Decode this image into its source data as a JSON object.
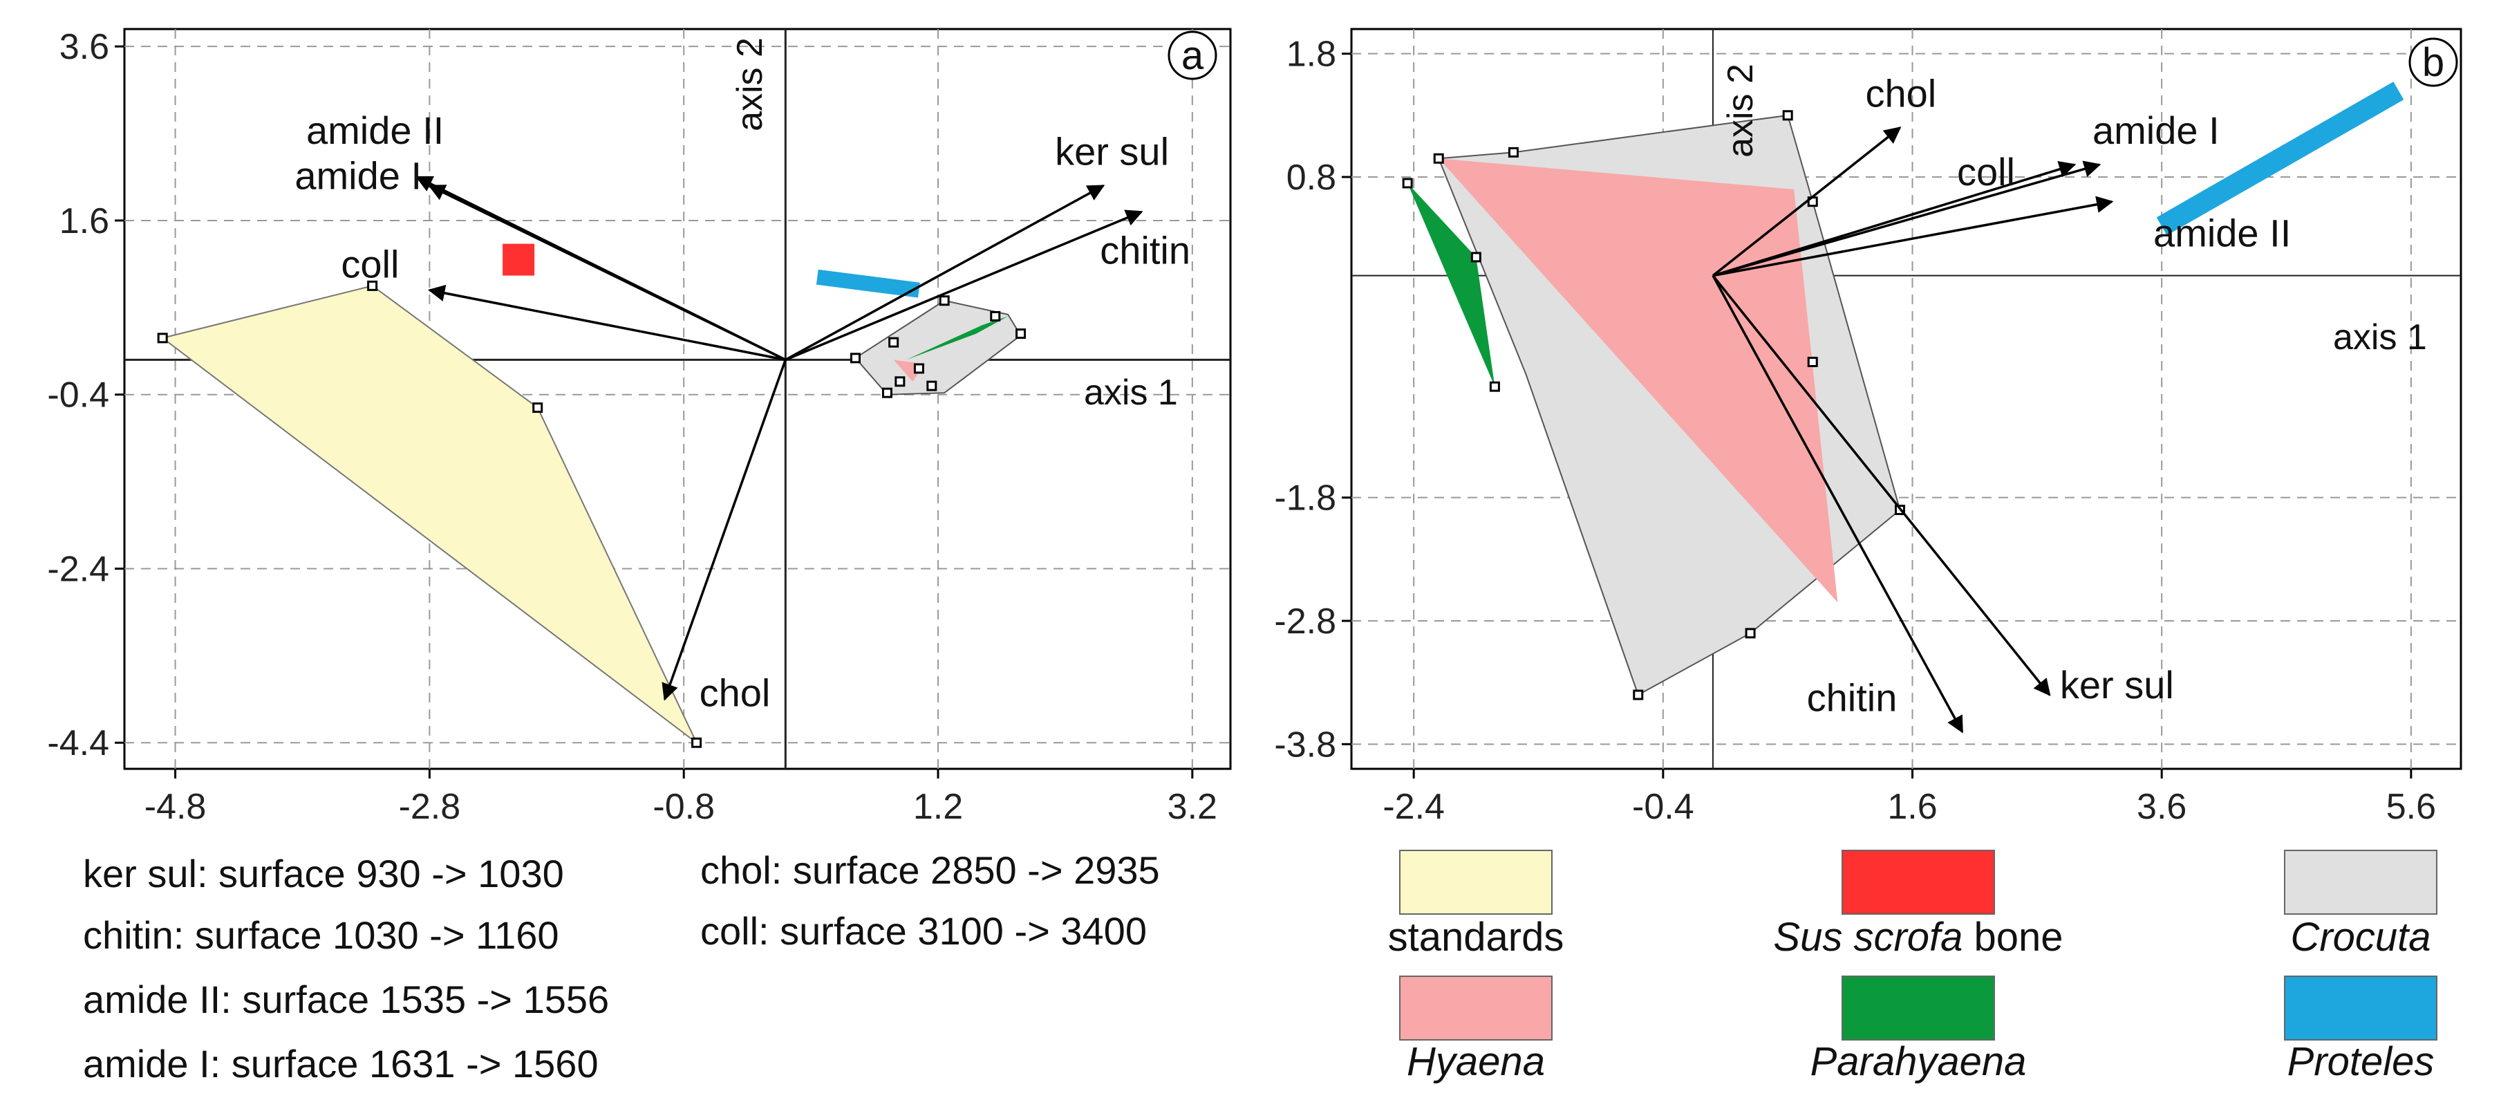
{
  "chart_data": [
    {
      "type": "scatter",
      "panel": "a",
      "xlabel": "axis 1",
      "ylabel": "axis 2",
      "xlim": [
        -5.2,
        3.5
      ],
      "ylim": [
        -4.7,
        3.8
      ],
      "xticks": [
        -4.8,
        -2.8,
        -0.8,
        1.2,
        3.2
      ],
      "xtick_labels": [
        "-4.8",
        "-2.8",
        "-0.8",
        "1.2",
        "3.2"
      ],
      "yticks": [
        3.6,
        1.6,
        -0.4,
        -2.4,
        -4.4
      ],
      "ytick_labels": [
        "3.6",
        "1.6",
        "-0.4",
        "-2.4",
        "-4.4"
      ],
      "vectors": [
        {
          "label": "ker sul",
          "x": 2.5,
          "y": 2.0
        },
        {
          "label": "chitin",
          "x": 2.8,
          "y": 1.7
        },
        {
          "label": "amide II",
          "x": -2.9,
          "y": 2.1
        },
        {
          "label": "amide I",
          "x": -2.8,
          "y": 2.0
        },
        {
          "label": "coll",
          "x": -2.8,
          "y": 0.8
        },
        {
          "label": "chol",
          "x": -0.95,
          "y": -3.9
        }
      ],
      "groups": [
        {
          "name": "standards",
          "color": "#fdf8c8",
          "stroke": "#777777",
          "polygon": [
            [
              -4.9,
              0.25
            ],
            [
              -3.25,
              0.85
            ],
            [
              -1.95,
              -0.55
            ],
            [
              -0.7,
              -4.4
            ]
          ],
          "points": [
            [
              -4.9,
              0.25
            ],
            [
              -3.25,
              0.85
            ],
            [
              -1.95,
              -0.55
            ],
            [
              -0.7,
              -4.4
            ]
          ]
        },
        {
          "name": "Sus scrofa bone",
          "color": "#ff3030",
          "marker": "square",
          "x": -2.1,
          "y": 1.15
        },
        {
          "name": "Crocuta",
          "color": "#e0e0e0",
          "stroke": "#555555",
          "polygon": [
            [
              0.55,
              0.02
            ],
            [
              1.25,
              0.68
            ],
            [
              1.75,
              0.52
            ],
            [
              1.85,
              0.28
            ],
            [
              1.25,
              -0.38
            ],
            [
              0.8,
              -0.4
            ]
          ],
          "points": [
            [
              0.55,
              0.02
            ],
            [
              1.25,
              0.68
            ],
            [
              1.65,
              0.5
            ],
            [
              1.85,
              0.3
            ],
            [
              0.85,
              0.2
            ],
            [
              1.05,
              -0.1
            ],
            [
              0.9,
              -0.25
            ],
            [
              1.15,
              -0.3
            ],
            [
              0.8,
              -0.38
            ]
          ]
        },
        {
          "name": "Hyaena",
          "color": "#f8a8a8",
          "polygon": [
            [
              0.85,
              0.0
            ],
            [
              1.0,
              -0.25
            ],
            [
              1.1,
              -0.05
            ]
          ]
        },
        {
          "name": "Parahyaena",
          "color": "#0a9a3c",
          "polygon": [
            [
              0.95,
              0.0
            ],
            [
              1.55,
              0.4
            ],
            [
              1.75,
              0.5
            ],
            [
              1.5,
              0.3
            ]
          ]
        },
        {
          "name": "Proteles",
          "color": "#1ea6de",
          "line": [
            [
              0.25,
              0.95
            ],
            [
              1.05,
              0.8
            ]
          ]
        }
      ]
    },
    {
      "type": "scatter",
      "panel": "b",
      "xlabel": "axis 1",
      "ylabel": "axis 2",
      "xlim": [
        -2.9,
        6.0
      ],
      "ylim": [
        -4.0,
        2.0
      ],
      "xticks": [
        -2.4,
        -0.4,
        1.6,
        3.6,
        5.6
      ],
      "xtick_labels": [
        "-2.4",
        "-0.4",
        "1.6",
        "3.6",
        "5.6"
      ],
      "yticks": [
        1.8,
        0.8,
        -1.8,
        -2.8,
        -3.8
      ],
      "ytick_labels": [
        "1.8",
        "0.8",
        "-1.8",
        "-2.8",
        "-3.8"
      ],
      "vectors": [
        {
          "label": "chol",
          "x": 1.5,
          "y": 1.2
        },
        {
          "label": "coll",
          "x": 2.9,
          "y": 0.9
        },
        {
          "label": "amide I",
          "x": 3.1,
          "y": 0.9
        },
        {
          "label": "amide II",
          "x": 3.2,
          "y": 0.6
        },
        {
          "label": "ker sul",
          "x": 2.7,
          "y": -3.4
        },
        {
          "label": "chitin",
          "x": 2.0,
          "y": -3.7
        }
      ],
      "groups": [
        {
          "name": "standards",
          "color": "#fdf8c8"
        },
        {
          "name": "Sus scrofa bone",
          "color": "#ff3030"
        },
        {
          "name": "Crocuta",
          "color": "#e0e0e0",
          "stroke": "#555555",
          "polygon": [
            [
              -2.2,
              0.95
            ],
            [
              -1.6,
              1.0
            ],
            [
              0.6,
              1.3
            ],
            [
              0.8,
              0.6
            ],
            [
              1.5,
              -1.9
            ],
            [
              0.3,
              -2.9
            ],
            [
              -0.6,
              -3.4
            ],
            [
              -1.5,
              -0.8
            ]
          ],
          "points": [
            [
              -2.2,
              0.95
            ],
            [
              -1.6,
              1.0
            ],
            [
              0.6,
              1.3
            ],
            [
              0.8,
              0.6
            ],
            [
              1.5,
              -1.9
            ],
            [
              0.3,
              -2.9
            ],
            [
              -0.6,
              -3.4
            ],
            [
              0.8,
              -0.7
            ]
          ]
        },
        {
          "name": "Hyaena",
          "color": "#f8a8a8",
          "polygon": [
            [
              -2.2,
              0.95
            ],
            [
              0.65,
              0.7
            ],
            [
              1.0,
              -2.65
            ]
          ]
        },
        {
          "name": "Parahyaena",
          "color": "#0a9a3c",
          "polygon": [
            [
              -2.45,
              0.75
            ],
            [
              -1.9,
              0.15
            ],
            [
              -1.75,
              -0.9
            ]
          ],
          "points": [
            [
              -2.45,
              0.75
            ],
            [
              -1.9,
              0.15
            ],
            [
              -1.75,
              -0.9
            ]
          ]
        },
        {
          "name": "Proteles",
          "color": "#1ea6de",
          "line": [
            [
              3.6,
              0.4
            ],
            [
              5.5,
              1.5
            ]
          ]
        }
      ]
    }
  ],
  "panel_tags": [
    "a",
    "b"
  ],
  "variable_definitions": [
    "ker sul: surface 930 -> 1030",
    "chitin: surface 1030 -> 1160",
    "amide II: surface 1535 -> 1556",
    "amide I: surface 1631 -> 1560",
    "chol: surface 2850 -> 2935",
    "coll: surface 3100 -> 3400"
  ],
  "legend": [
    {
      "name": "standards",
      "italic": "",
      "suffix": "standards",
      "color": "#fdf8c8"
    },
    {
      "name": "Sus scrofa bone",
      "italic": "Sus scrofa",
      "suffix": " bone",
      "color": "#ff3030"
    },
    {
      "name": "Crocuta",
      "italic": "Crocuta",
      "suffix": "",
      "color": "#e0e0e0"
    },
    {
      "name": "Hyaena",
      "italic": "Hyaena",
      "suffix": "",
      "color": "#f8a8a8"
    },
    {
      "name": "Parahyaena",
      "italic": "Parahyaena",
      "suffix": "",
      "color": "#0a9a3c"
    },
    {
      "name": "Proteles",
      "italic": "Proteles",
      "suffix": "",
      "color": "#1ea6de"
    }
  ]
}
